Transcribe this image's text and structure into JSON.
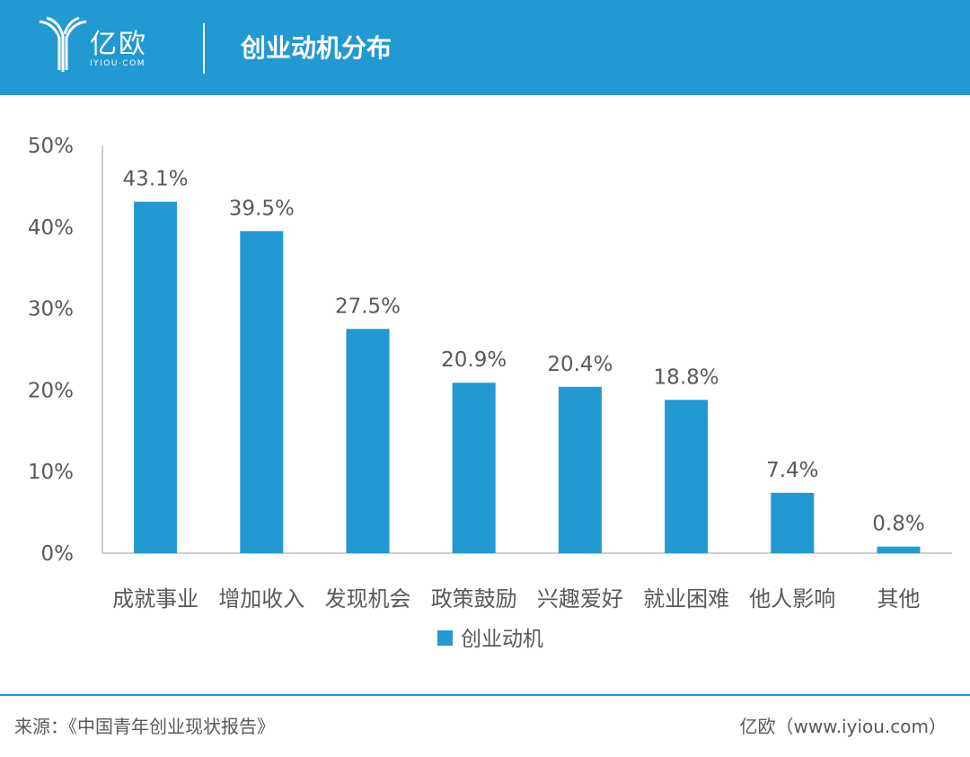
{
  "header": {
    "logo_text": "亿欧",
    "logo_subtext": "IYIOU·COM",
    "title": "创业动机分布",
    "background_color": "#2299d3"
  },
  "chart_data": {
    "type": "bar",
    "categories": [
      "成就事业",
      "增加收入",
      "发现机会",
      "政策鼓励",
      "兴趣爱好",
      "就业困难",
      "他人影响",
      "其他"
    ],
    "series": [
      {
        "name": "创业动机",
        "values": [
          43.1,
          39.5,
          27.5,
          20.9,
          20.4,
          18.8,
          7.4,
          0.8
        ],
        "color": "#2299d3"
      }
    ],
    "data_labels": [
      "43.1%",
      "39.5%",
      "27.5%",
      "20.9%",
      "20.4%",
      "18.8%",
      "7.4%",
      "0.8%"
    ],
    "y_ticks": [
      0,
      10,
      20,
      30,
      40,
      50
    ],
    "y_tick_labels": [
      "0%",
      "10%",
      "20%",
      "30%",
      "40%",
      "50%"
    ],
    "ylim": [
      0,
      50
    ],
    "grid": false,
    "legend_position": "bottom-center",
    "title": "",
    "xlabel": "",
    "ylabel": ""
  },
  "footer": {
    "source": "来源：《中国青年创业现状报告》",
    "brand": "亿欧（www.iyiou.com）"
  }
}
